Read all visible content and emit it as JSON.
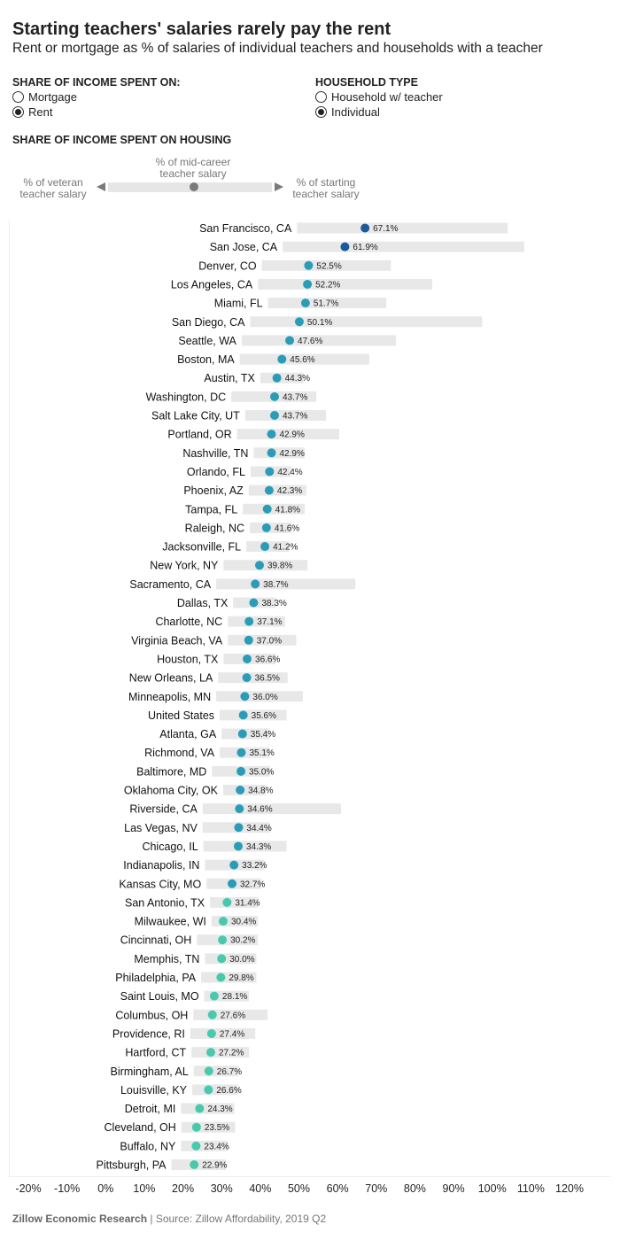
{
  "header": {
    "title": "Starting teachers' salaries rarely pay the rent",
    "subtitle": "Rent or mortgage as % of salaries of individual teachers and households with a teacher"
  },
  "controls": {
    "share": {
      "title": "SHARE OF INCOME SPENT ON:",
      "options": [
        "Mortgage",
        "Rent"
      ],
      "selected": "Rent"
    },
    "household": {
      "title": "HOUSEHOLD TYPE",
      "options": [
        "Household w/ teacher",
        "Individual"
      ],
      "selected": "Individual"
    }
  },
  "legend": {
    "title": "SHARE OF INCOME SPENT ON HOUSING",
    "left_label": "% of veteran teacher salary",
    "mid_label": "% of mid-career teacher salary",
    "right_label": "% of starting teacher salary"
  },
  "footer": {
    "org": "Zillow Economic Research",
    "source": " | Source: Zillow Affordability, 2019 Q2"
  },
  "colors": {
    "range_bar": "#e8e8e8",
    "dot_high": "#1a5a9a",
    "dot_mid": "#2a9cb8",
    "dot_low": "#48c9ae",
    "axis_text": "#222222"
  },
  "chart_data": {
    "type": "range-dot",
    "xlim": [
      -20,
      120
    ],
    "xticks": [
      -20,
      -10,
      0,
      10,
      20,
      30,
      40,
      50,
      60,
      70,
      80,
      90,
      100,
      110,
      120
    ],
    "tick_suffix": "%",
    "rows": [
      {
        "city": "San Francisco, CA",
        "veteran": 49.5,
        "mid": 67.1,
        "starting": 104.0
      },
      {
        "city": "San Jose, CA",
        "veteran": 45.8,
        "mid": 61.9,
        "starting": 108.3
      },
      {
        "city": "Denver, CO",
        "veteran": 40.4,
        "mid": 52.5,
        "starting": 73.8
      },
      {
        "city": "Los Angeles, CA",
        "veteran": 39.4,
        "mid": 52.2,
        "starting": 84.5
      },
      {
        "city": "Miami, FL",
        "veteran": 42.0,
        "mid": 51.7,
        "starting": 72.6
      },
      {
        "city": "San Diego, CA",
        "veteran": 37.4,
        "mid": 50.1,
        "starting": 97.4
      },
      {
        "city": "Seattle, WA",
        "veteran": 35.2,
        "mid": 47.6,
        "starting": 75.1
      },
      {
        "city": "Boston, MA",
        "veteran": 34.7,
        "mid": 45.6,
        "starting": 68.2
      },
      {
        "city": "Austin, TX",
        "veteran": 40.0,
        "mid": 44.3,
        "starting": 51.2
      },
      {
        "city": "Washington, DC",
        "veteran": 32.5,
        "mid": 43.7,
        "starting": 54.5
      },
      {
        "city": "Salt Lake City, UT",
        "veteran": 36.1,
        "mid": 43.7,
        "starting": 57.0
      },
      {
        "city": "Portland, OR",
        "veteran": 34.0,
        "mid": 42.9,
        "starting": 60.4
      },
      {
        "city": "Nashville, TN",
        "veteran": 38.3,
        "mid": 42.9,
        "starting": 51.5
      },
      {
        "city": "Orlando, FL",
        "veteran": 37.5,
        "mid": 42.4,
        "starting": 48.0
      },
      {
        "city": "Phoenix, AZ",
        "veteran": 37.0,
        "mid": 42.3,
        "starting": 51.9
      },
      {
        "city": "Tampa, FL",
        "veteran": 35.5,
        "mid": 41.8,
        "starting": 51.5
      },
      {
        "city": "Raleigh, NC",
        "veteran": 37.3,
        "mid": 41.6,
        "starting": 48.1
      },
      {
        "city": "Jacksonville, FL",
        "veteran": 36.4,
        "mid": 41.2,
        "starting": 47.5
      },
      {
        "city": "New York, NY",
        "veteran": 30.5,
        "mid": 39.8,
        "starting": 52.2
      },
      {
        "city": "Sacramento, CA",
        "veteran": 28.6,
        "mid": 38.7,
        "starting": 64.6
      },
      {
        "city": "Dallas, TX",
        "veteran": 33.0,
        "mid": 38.3,
        "starting": 44.0
      },
      {
        "city": "Charlotte, NC",
        "veteran": 31.6,
        "mid": 37.1,
        "starting": 46.4
      },
      {
        "city": "Virginia Beach, VA",
        "veteran": 31.6,
        "mid": 37.0,
        "starting": 49.3
      },
      {
        "city": "Houston, TX",
        "veteran": 30.5,
        "mid": 36.6,
        "starting": 44.0
      },
      {
        "city": "New Orleans, LA",
        "veteran": 29.1,
        "mid": 36.5,
        "starting": 47.1
      },
      {
        "city": "Minneapolis, MN",
        "veteran": 28.6,
        "mid": 36.0,
        "starting": 51.0
      },
      {
        "city": "United States",
        "veteran": 29.5,
        "mid": 35.6,
        "starting": 46.8
      },
      {
        "city": "Atlanta, GA",
        "veteran": 30.0,
        "mid": 35.4,
        "starting": 42.5
      },
      {
        "city": "Richmond, VA",
        "veteran": 29.5,
        "mid": 35.1,
        "starting": 42.5
      },
      {
        "city": "Baltimore, MD",
        "veteran": 27.5,
        "mid": 35.0,
        "starting": 42.5
      },
      {
        "city": "Oklahoma City, OK",
        "veteran": 30.4,
        "mid": 34.8,
        "starting": 41.4
      },
      {
        "city": "Riverside, CA",
        "veteran": 25.1,
        "mid": 34.6,
        "starting": 60.9
      },
      {
        "city": "Las Vegas, NV",
        "veteran": 25.1,
        "mid": 34.4,
        "starting": 42.5
      },
      {
        "city": "Chicago, IL",
        "veteran": 25.3,
        "mid": 34.3,
        "starting": 46.8
      },
      {
        "city": "Indianapolis, IN",
        "veteran": 25.7,
        "mid": 33.2,
        "starting": 41.0
      },
      {
        "city": "Kansas City, MO",
        "veteran": 26.1,
        "mid": 32.7,
        "starting": 40.2
      },
      {
        "city": "San Antonio, TX",
        "veteran": 27.0,
        "mid": 31.4,
        "starting": 39.4
      },
      {
        "city": "Milwaukee, WI",
        "veteran": 27.4,
        "mid": 30.4,
        "starting": 39.4
      },
      {
        "city": "Cincinnati, OH",
        "veteran": 23.6,
        "mid": 30.2,
        "starting": 39.4
      },
      {
        "city": "Memphis, TN",
        "veteran": 25.7,
        "mid": 30.0,
        "starting": 39.0
      },
      {
        "city": "Philadelphia, PA",
        "veteran": 24.7,
        "mid": 29.8,
        "starting": 39.0
      },
      {
        "city": "Saint Louis, MO",
        "veteran": 25.5,
        "mid": 28.1,
        "starting": 37.1
      },
      {
        "city": "Columbus, OH",
        "veteran": 22.7,
        "mid": 27.6,
        "starting": 41.9
      },
      {
        "city": "Providence, RI",
        "veteran": 21.9,
        "mid": 27.4,
        "starting": 38.7
      },
      {
        "city": "Hartford, CT",
        "veteran": 22.2,
        "mid": 27.2,
        "starting": 37.1
      },
      {
        "city": "Birmingham, AL",
        "veteran": 22.8,
        "mid": 26.7,
        "starting": 34.4
      },
      {
        "city": "Louisville, KY",
        "veteran": 22.4,
        "mid": 26.6,
        "starting": 34.2
      },
      {
        "city": "Detroit, MI",
        "veteran": 19.5,
        "mid": 24.3,
        "starting": 33.3
      },
      {
        "city": "Cleveland, OH",
        "veteran": 19.6,
        "mid": 23.5,
        "starting": 33.5
      },
      {
        "city": "Buffalo, NY",
        "veteran": 19.5,
        "mid": 23.4,
        "starting": 31.6
      },
      {
        "city": "Pittsburgh, PA",
        "veteran": 17.0,
        "mid": 22.9,
        "starting": 31.1
      }
    ]
  }
}
